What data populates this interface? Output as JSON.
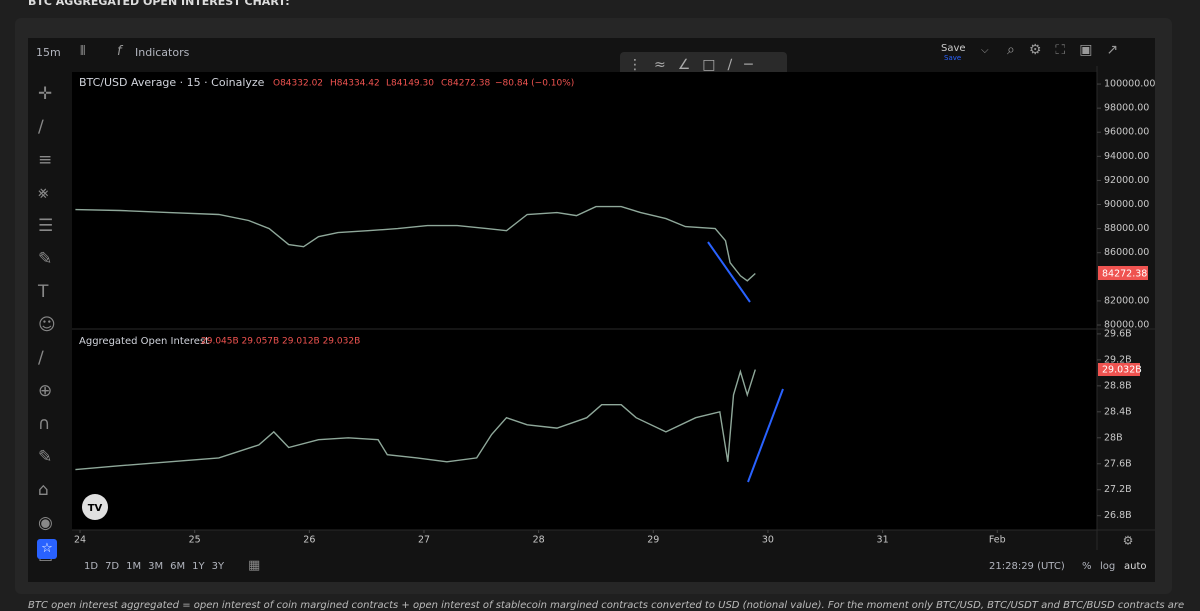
{
  "header": {
    "title": "BTC AGGREGATED OPEN INTEREST CHART:"
  },
  "toolbar": {
    "interval": "15m",
    "indicators": "Indicators",
    "save": "Save",
    "save_sub": "Save"
  },
  "price_legend": {
    "open": "O84332.02",
    "high": "H84334.42",
    "low": "L84149.30",
    "close": "C84272.38",
    "change": "−80.84 (−0.10%)"
  },
  "price_tag": "84272.38",
  "oi_legend": {
    "values": "29.045B 29.057B 29.012B 29.032B"
  },
  "oi_tag": "29.032B",
  "bottom_bar": {
    "ranges": [
      "1D",
      "7D",
      "1M",
      "3M",
      "6M",
      "1Y",
      "3Y"
    ],
    "time": "21:28:29 (UTC)",
    "percent": "%",
    "log": "log",
    "auto": "auto"
  },
  "footer": {
    "text": "BTC open interest aggregated = open interest of coin margined contracts + open interest of stablecoin margined contracts converted to USD (notional value). For the moment only BTC/USD, BTC/USDT and BTC/BUSD contracts are"
  },
  "chart_data": [
    {
      "type": "line",
      "grid": false,
      "x": [
        23.96,
        24.35,
        24.78,
        25.21,
        25.47,
        25.65,
        25.82,
        25.95,
        26.08,
        26.25,
        26.51,
        26.77,
        27.03,
        27.29,
        27.55,
        27.72,
        27.9,
        28.16,
        28.33,
        28.5,
        28.72,
        28.89,
        29.11,
        29.28,
        29.54,
        29.63,
        29.67,
        29.76,
        29.82,
        29.89
      ],
      "series": [
        {
          "name": "BTC/USD Average · 15 · Coinalyze",
          "color": "#8fa89a",
          "values": [
            89580,
            89500,
            89330,
            89170,
            88670,
            88000,
            86670,
            86500,
            87330,
            87670,
            87830,
            88000,
            88250,
            88250,
            88000,
            87830,
            89170,
            89330,
            89080,
            89830,
            89830,
            89330,
            88830,
            88170,
            88000,
            87000,
            85170,
            84080,
            83670,
            84270
          ]
        }
      ],
      "xlim": [
        23.93,
        32.87
      ],
      "ylim": [
        79750,
        101000
      ],
      "yticks": [
        {
          "value": 80000,
          "label": "80000.00"
        },
        {
          "value": 82000,
          "label": "82000.00"
        },
        {
          "value": 86000,
          "label": "86000.00"
        },
        {
          "value": 88000,
          "label": "88000.00"
        },
        {
          "value": 90000,
          "label": "90000.00"
        },
        {
          "value": 92000,
          "label": "92000.00"
        },
        {
          "value": 94000,
          "label": "94000.00"
        },
        {
          "value": 96000,
          "label": "96000.00"
        },
        {
          "value": 98000,
          "label": "98000.00"
        },
        {
          "value": 100000,
          "label": "100000.00"
        }
      ]
    },
    {
      "type": "line",
      "grid": false,
      "x": [
        23.96,
        24.35,
        24.78,
        25.21,
        25.56,
        25.69,
        25.82,
        26.08,
        26.34,
        26.6,
        26.68,
        26.94,
        27.2,
        27.46,
        27.59,
        27.72,
        27.9,
        28.16,
        28.42,
        28.55,
        28.72,
        28.85,
        29.11,
        29.37,
        29.58,
        29.65,
        29.7,
        29.76,
        29.82,
        29.89
      ],
      "series": [
        {
          "name": "Aggregated Open Interest",
          "color": "#8fa89a",
          "values": [
            27.51,
            27.57,
            27.63,
            27.69,
            27.89,
            28.09,
            27.85,
            27.97,
            28.0,
            27.97,
            27.74,
            27.69,
            27.63,
            27.69,
            28.05,
            28.31,
            28.2,
            28.15,
            28.31,
            28.51,
            28.51,
            28.31,
            28.09,
            28.31,
            28.4,
            27.63,
            28.66,
            29.02,
            28.66,
            29.05
          ]
        }
      ],
      "xlim": [
        23.93,
        32.87
      ],
      "ylim": [
        26.58,
        29.66
      ],
      "yticks": [
        {
          "value": 26.8,
          "label": "26.8B"
        },
        {
          "value": 27.2,
          "label": "27.2B"
        },
        {
          "value": 27.6,
          "label": "27.6B"
        },
        {
          "value": 28,
          "label": "28B"
        },
        {
          "value": 28.4,
          "label": "28.4B"
        },
        {
          "value": 28.8,
          "label": "28.8B"
        },
        {
          "value": 29.2,
          "label": "29.2B"
        },
        {
          "value": 29.6,
          "label": "29.6B"
        }
      ],
      "xticks": [
        24,
        25,
        26,
        27,
        28,
        29,
        30,
        31,
        {
          "value": 32,
          "label": "Feb"
        }
      ]
    }
  ]
}
